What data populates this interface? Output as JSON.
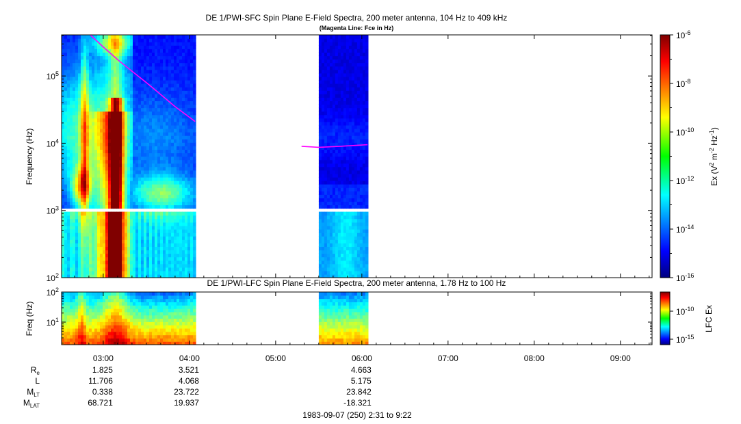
{
  "chart_data": [
    {
      "type": "heatmap",
      "title": "DE 1/PWI-SFC  Spin Plane E-Field Spectra, 200 meter antenna, 104 Hz to 409 kHz",
      "subtitle": "(Magenta Line: Fce in Hz)",
      "ylabel": "Frequency (Hz)",
      "yscale": "log",
      "ylim": [
        100,
        409000
      ],
      "ytick_labels": [
        {
          "value": 100,
          "base": "10",
          "exp": "2"
        },
        {
          "value": 1000,
          "base": "10",
          "exp": "3"
        },
        {
          "value": 10000,
          "base": "10",
          "exp": "4"
        },
        {
          "value": 100000,
          "base": "10",
          "exp": "5"
        }
      ],
      "xlim": [
        "02:31",
        "09:22"
      ],
      "data_intervals": [
        [
          "02:31",
          "04:04"
        ],
        [
          "05:30",
          "06:04"
        ]
      ],
      "colorbar": {
        "label": "Ex (V2 m-2 Hz-1)",
        "label_parts": [
          "Ex (V",
          "2",
          " m",
          "-2",
          " Hz",
          "-1",
          ")"
        ],
        "scale": "log",
        "range": [
          1e-16,
          1e-06
        ],
        "tick_labels": [
          {
            "value": 1e-06,
            "base": "10",
            "exp": "-6"
          },
          {
            "value": 1e-08,
            "base": "10",
            "exp": "-8"
          },
          {
            "value": 1e-10,
            "base": "10",
            "exp": "-10"
          },
          {
            "value": 1e-12,
            "base": "10",
            "exp": "-12"
          },
          {
            "value": 1e-14,
            "base": "10",
            "exp": "-14"
          },
          {
            "value": 1e-16,
            "base": "10",
            "exp": "-16"
          }
        ]
      },
      "fce_line": {
        "color": "#ff00ff",
        "points": [
          {
            "time": "02:51",
            "freq": 409000
          },
          {
            "time": "03:00",
            "freq": 270000
          },
          {
            "time": "03:10",
            "freq": 175000
          },
          {
            "time": "03:20",
            "freq": 118000
          },
          {
            "time": "03:30",
            "freq": 80000
          },
          {
            "time": "03:40",
            "freq": 53000
          },
          {
            "time": "03:50",
            "freq": 35000
          },
          {
            "time": "04:04",
            "freq": 21000
          },
          {
            "time": "05:18",
            "freq": 9000
          },
          {
            "time": "05:30",
            "freq": 8700
          },
          {
            "time": "05:45",
            "freq": 9000
          },
          {
            "time": "06:04",
            "freq": 9500
          }
        ]
      }
    },
    {
      "type": "heatmap",
      "title": "DE 1/PWI-LFC  Spin Plane E-Field Spectra, 200 meter antenna, 1.78 Hz to 100 Hz",
      "ylabel": "Freq (Hz)",
      "yscale": "log",
      "ylim": [
        1.78,
        100
      ],
      "ytick_labels": [
        {
          "value": 10,
          "base": "10",
          "exp": "1"
        },
        {
          "value": 100,
          "base": "10",
          "exp": "2"
        }
      ],
      "xlim": [
        "02:31",
        "09:22"
      ],
      "data_intervals": [
        [
          "02:31",
          "04:04"
        ],
        [
          "05:30",
          "06:04"
        ]
      ],
      "colorbar": {
        "label": "LFC Ex",
        "scale": "log",
        "tick_labels": [
          {
            "value": 1e-10,
            "base": "10",
            "exp": "-10"
          },
          {
            "value": 1e-15,
            "base": "10",
            "exp": "-15"
          }
        ]
      }
    }
  ],
  "time_axis": {
    "ticks": [
      "03:00",
      "04:00",
      "05:00",
      "06:00",
      "07:00",
      "08:00",
      "09:00"
    ]
  },
  "ephemeris": {
    "labels": [
      {
        "base": "R",
        "sub": "e"
      },
      {
        "base": "L",
        "sub": ""
      },
      {
        "base": "M",
        "sub": "LT"
      },
      {
        "base": "M",
        "sub": "LAT"
      }
    ],
    "columns": [
      {
        "time": "03:00",
        "values": [
          "1.825",
          "11.706",
          "0.338",
          "68.721"
        ]
      },
      {
        "time": "04:00",
        "values": [
          "3.521",
          "4.068",
          "23.722",
          "19.937"
        ]
      },
      {
        "time": "06:00",
        "values": [
          "4.663",
          "5.175",
          "23.842",
          "-18.321"
        ]
      }
    ]
  },
  "footer": "1983-09-07 (250) 2:31 to 9:22"
}
